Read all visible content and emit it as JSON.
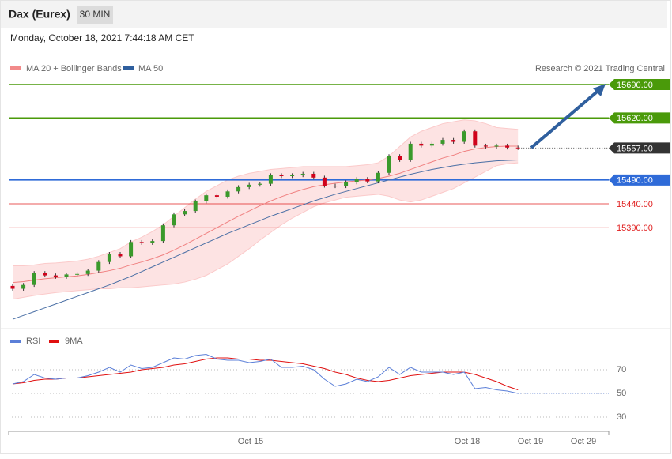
{
  "header": {
    "title": "Dax (Eurex)",
    "tab": "30 MIN",
    "timestamp": "Monday, October 18, 2021 7:44:18 AM CET"
  },
  "chart_data": [
    {
      "type": "candlestick",
      "legend": [
        "MA 20 + Bollinger Bands",
        "MA 50"
      ],
      "legend_colors": [
        "#f28a8a",
        "#2f5f9e"
      ],
      "credit": "Research © 2021 Trading Central",
      "ylim": [
        15190,
        15700
      ],
      "up_color": "#3a9a2b",
      "down_color": "#d0021b",
      "open": [
        15268,
        15262,
        15270,
        15295,
        15290,
        15287,
        15292,
        15293,
        15300,
        15318,
        15335,
        15330,
        15360,
        15358,
        15362,
        15395,
        15418,
        15425,
        15445,
        15458,
        15455,
        15466,
        15475,
        15480,
        15482,
        15500,
        15498,
        15500,
        15503,
        15495,
        15478,
        15477,
        15485,
        15492,
        15487,
        15505,
        15540,
        15532,
        15566,
        15562,
        15566,
        15574,
        15570,
        15592,
        15562,
        15560,
        15562,
        15558
      ],
      "high": [
        15272,
        15274,
        15299,
        15299,
        15294,
        15296,
        15297,
        15304,
        15322,
        15339,
        15339,
        15364,
        15364,
        15366,
        15399,
        15422,
        15429,
        15449,
        15462,
        15462,
        15470,
        15479,
        15484,
        15486,
        15504,
        15504,
        15504,
        15507,
        15507,
        15499,
        15482,
        15489,
        15496,
        15496,
        15509,
        15544,
        15544,
        15570,
        15570,
        15570,
        15578,
        15578,
        15596,
        15596,
        15566,
        15566,
        15566,
        15562
      ],
      "low": [
        15258,
        15258,
        15266,
        15286,
        15283,
        15283,
        15288,
        15289,
        15296,
        15314,
        15326,
        15326,
        15354,
        15354,
        15358,
        15391,
        15414,
        15421,
        15441,
        15451,
        15451,
        15462,
        15471,
        15476,
        15478,
        15494,
        15494,
        15496,
        15491,
        15474,
        15473,
        15473,
        15481,
        15483,
        15483,
        15501,
        15528,
        15528,
        15558,
        15558,
        15562,
        15566,
        15566,
        15558,
        15556,
        15556,
        15554,
        15553
      ],
      "close": [
        15262,
        15270,
        15295,
        15290,
        15287,
        15292,
        15293,
        15300,
        15318,
        15335,
        15330,
        15360,
        15358,
        15362,
        15395,
        15418,
        15425,
        15445,
        15458,
        15455,
        15466,
        15475,
        15480,
        15482,
        15500,
        15498,
        15500,
        15503,
        15495,
        15478,
        15477,
        15485,
        15492,
        15487,
        15505,
        15540,
        15532,
        15566,
        15562,
        15566,
        15574,
        15570,
        15592,
        15562,
        15560,
        15562,
        15558,
        15557
      ],
      "ma20": [
        15275,
        15277,
        15280,
        15283,
        15285,
        15287,
        15289,
        15292,
        15296,
        15300,
        15305,
        15312,
        15318,
        15325,
        15333,
        15343,
        15354,
        15366,
        15378,
        15390,
        15402,
        15414,
        15425,
        15436,
        15446,
        15455,
        15463,
        15470,
        15476,
        15480,
        15483,
        15486,
        15488,
        15490,
        15493,
        15498,
        15504,
        15512,
        15520,
        15528,
        15536,
        15542,
        15550,
        15555,
        15558,
        15560,
        15561,
        15561
      ],
      "upper": [
        15310,
        15310,
        15312,
        15315,
        15316,
        15318,
        15320,
        15324,
        15330,
        15338,
        15346,
        15360,
        15370,
        15382,
        15396,
        15414,
        15432,
        15450,
        15466,
        15478,
        15490,
        15498,
        15504,
        15508,
        15512,
        15514,
        15516,
        15518,
        15518,
        15518,
        15518,
        15518,
        15520,
        15522,
        15526,
        15540,
        15560,
        15580,
        15592,
        15600,
        15608,
        15612,
        15616,
        15614,
        15608,
        15600,
        15598,
        15596
      ],
      "lower": [
        15240,
        15244,
        15248,
        15251,
        15254,
        15256,
        15258,
        15260,
        15262,
        15262,
        15264,
        15264,
        15266,
        15268,
        15270,
        15272,
        15276,
        15282,
        15290,
        15302,
        15314,
        15330,
        15346,
        15364,
        15380,
        15396,
        15410,
        15422,
        15434,
        15442,
        15448,
        15454,
        15456,
        15458,
        15460,
        15456,
        15448,
        15444,
        15448,
        15456,
        15464,
        15472,
        15484,
        15496,
        15508,
        15520,
        15524,
        15526
      ],
      "ma50": [
        15198,
        15206,
        15214,
        15222,
        15230,
        15238,
        15246,
        15254,
        15262,
        15270,
        15279,
        15288,
        15298,
        15308,
        15318,
        15328,
        15338,
        15348,
        15358,
        15368,
        15378,
        15387,
        15396,
        15405,
        15414,
        15422,
        15430,
        15438,
        15446,
        15453,
        15460,
        15466,
        15472,
        15478,
        15484,
        15490,
        15496,
        15502,
        15507,
        15512,
        15516,
        15520,
        15523,
        15526,
        15528,
        15530,
        15531,
        15532
      ],
      "levels": [
        {
          "value": 15690,
          "label": "15690.00",
          "color": "#4a9a0a",
          "tag": true
        },
        {
          "value": 15620,
          "label": "15620.00",
          "color": "#4a9a0a",
          "tag": true
        },
        {
          "value": 15557,
          "label": "15557.00",
          "color": "#333333",
          "tag": true,
          "dotted": true
        },
        {
          "value": 15490,
          "label": "15490.00",
          "color": "#2f6bd8",
          "tag": true
        },
        {
          "value": 15440,
          "label": "15440.00",
          "color": "#e02020",
          "tag": false
        },
        {
          "value": 15390,
          "label": "15390.00",
          "color": "#e02020",
          "tag": false
        }
      ]
    },
    {
      "type": "rsi",
      "legend": [
        "RSI",
        "9MA"
      ],
      "colors": [
        "#5b7fd8",
        "#e01010"
      ],
      "ylim": [
        20,
        80
      ],
      "yticks": [
        70,
        50,
        30
      ],
      "rsi": [
        58,
        60,
        66,
        63,
        62,
        63,
        63,
        65,
        68,
        72,
        68,
        74,
        71,
        72,
        76,
        80,
        79,
        82,
        83,
        79,
        78,
        78,
        76,
        77,
        79,
        72,
        72,
        73,
        70,
        62,
        56,
        58,
        62,
        60,
        64,
        72,
        66,
        72,
        68,
        68,
        68,
        66,
        68,
        54,
        55,
        53,
        52,
        50
      ],
      "ma9": [
        58,
        59,
        61,
        62,
        62,
        63,
        63,
        64,
        65,
        66,
        67,
        68,
        70,
        71,
        72,
        74,
        75,
        77,
        79,
        80,
        80,
        79,
        79,
        78,
        78,
        77,
        76,
        75,
        73,
        71,
        68,
        66,
        63,
        61,
        60,
        61,
        63,
        65,
        66,
        67,
        68,
        68,
        68,
        66,
        63,
        60,
        56,
        53
      ],
      "x_labels": [
        "Oct 15",
        "Oct 18",
        "Oct 19",
        "Oct 29"
      ]
    }
  ]
}
